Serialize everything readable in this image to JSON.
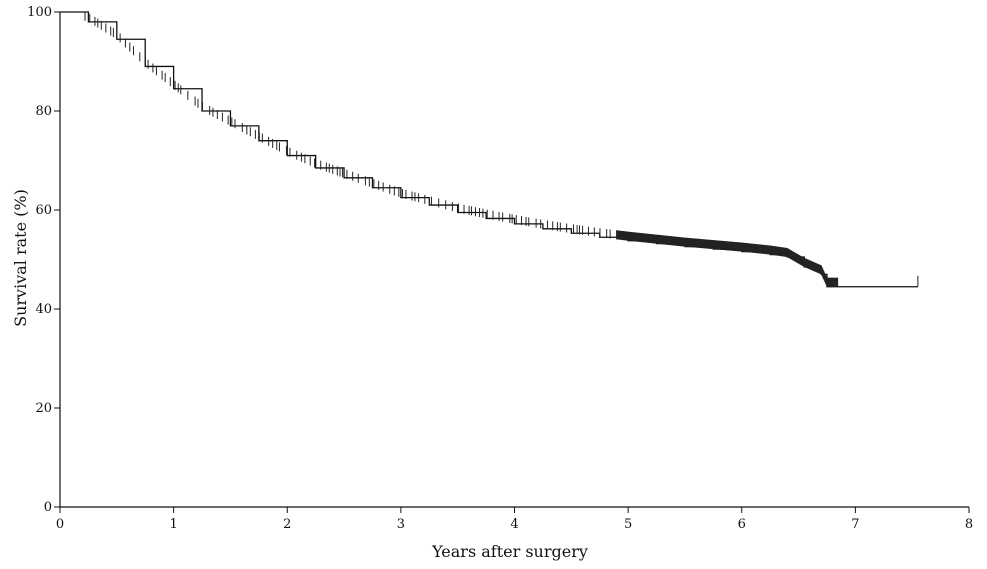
{
  "chart_data": {
    "type": "line",
    "title": "",
    "xlabel": "Years after surgery",
    "ylabel": "Survival rate (%)",
    "xlim": [
      0,
      8
    ],
    "ylim": [
      0,
      100
    ],
    "xticks": [
      0,
      1,
      2,
      3,
      4,
      5,
      6,
      7,
      8
    ],
    "yticks": [
      0,
      20,
      40,
      60,
      80,
      100
    ],
    "grid": false,
    "legend": "none",
    "series": [
      {
        "step": true,
        "censor_marks": true,
        "x": [
          0,
          0.25,
          0.5,
          0.75,
          1.0,
          1.25,
          1.5,
          1.75,
          2.0,
          2.25,
          2.5,
          2.75,
          3.0,
          3.25,
          3.5,
          3.75,
          4.0,
          4.25,
          4.5,
          4.75,
          5.0,
          5.25,
          5.5,
          5.75,
          6.0,
          6.25,
          6.4,
          6.55,
          6.7,
          6.75,
          6.9,
          7.55
        ],
        "y": [
          100,
          98,
          94.5,
          89,
          84.5,
          80,
          77,
          74,
          71,
          68.5,
          66.5,
          64.5,
          62.5,
          61,
          59.5,
          58.3,
          57.2,
          56.2,
          55.3,
          54.5,
          53.8,
          53.2,
          52.6,
          52.1,
          51.6,
          51.0,
          50.5,
          48.5,
          47.0,
          44.5,
          44.5,
          44.5
        ]
      }
    ]
  }
}
